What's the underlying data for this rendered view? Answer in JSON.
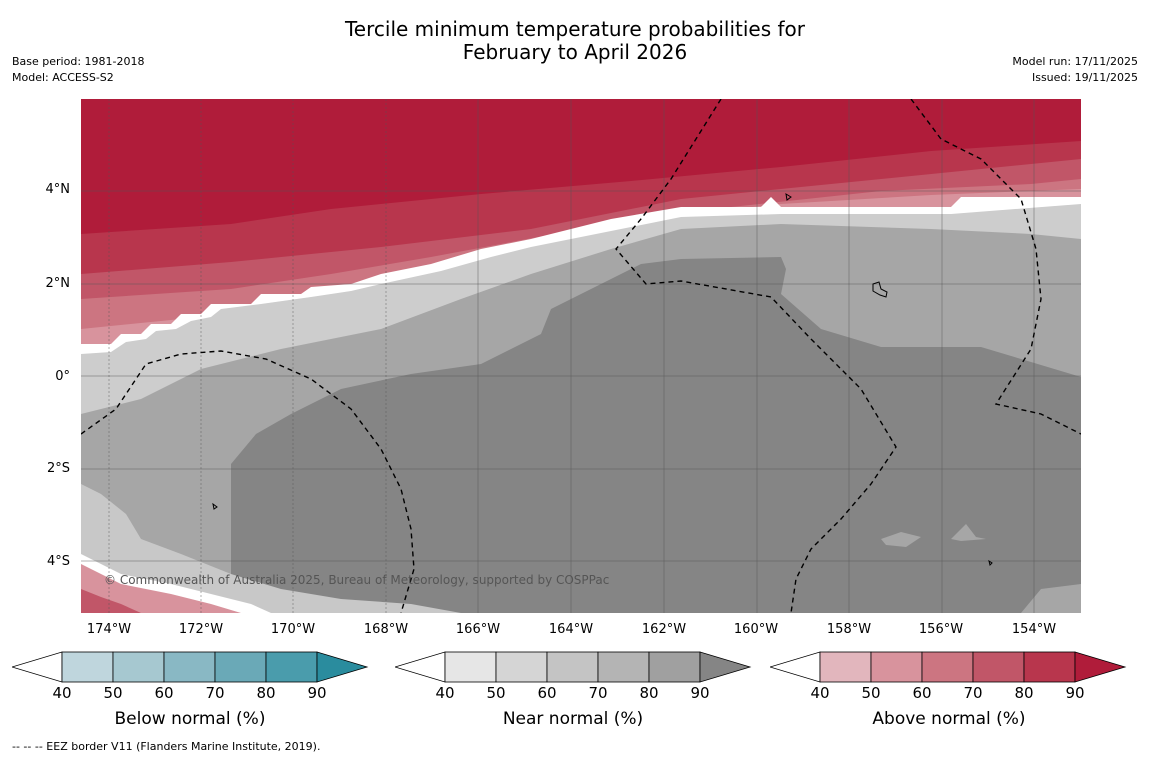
{
  "title_line1": "Tercile minimum temperature probabilities for",
  "title_line2": "February to April 2026",
  "base_period": "Base period: 1981-2018",
  "model": "Model: ACCESS-S2",
  "model_run": "Model run: 17/11/2025",
  "issued": "Issued: 19/11/2025",
  "lat_labels": [
    "4°N",
    "2°N",
    "0°",
    "2°S",
    "4°S"
  ],
  "lon_labels": [
    "174°W",
    "172°W",
    "170°W",
    "168°W",
    "166°W",
    "164°W",
    "162°W",
    "160°W",
    "158°W",
    "156°W",
    "154°W"
  ],
  "copyright": "© Commonwealth of Australia 2025, Bureau of Meteorology, supported by COSPPac",
  "legends": {
    "below": {
      "label": "Below normal (%)",
      "ticks": [
        "40",
        "50",
        "60",
        "70",
        "80",
        "90"
      ],
      "colors": [
        "#ffffff",
        "#bfd6dd",
        "#a6c8d0",
        "#89b8c4",
        "#6aa9b7",
        "#4a9cac",
        "#2a8c9e"
      ]
    },
    "near": {
      "label": "Near normal (%)",
      "ticks": [
        "40",
        "50",
        "60",
        "70",
        "80",
        "90"
      ],
      "colors": [
        "#ffffff",
        "#e6e6e6",
        "#d5d5d5",
        "#c4c4c4",
        "#b4b4b4",
        "#a0a0a0",
        "#858585"
      ]
    },
    "above": {
      "label": "Above normal (%)",
      "ticks": [
        "40",
        "50",
        "60",
        "70",
        "80",
        "90"
      ],
      "colors": [
        "#ffffff",
        "#e2b6bd",
        "#d8939d",
        "#cc7581",
        "#c15668",
        "#b8364d",
        "#b01c3a"
      ]
    }
  },
  "footer": "--  --  -- EEZ border V11 (Flanders Marine Institute, 2019)."
}
